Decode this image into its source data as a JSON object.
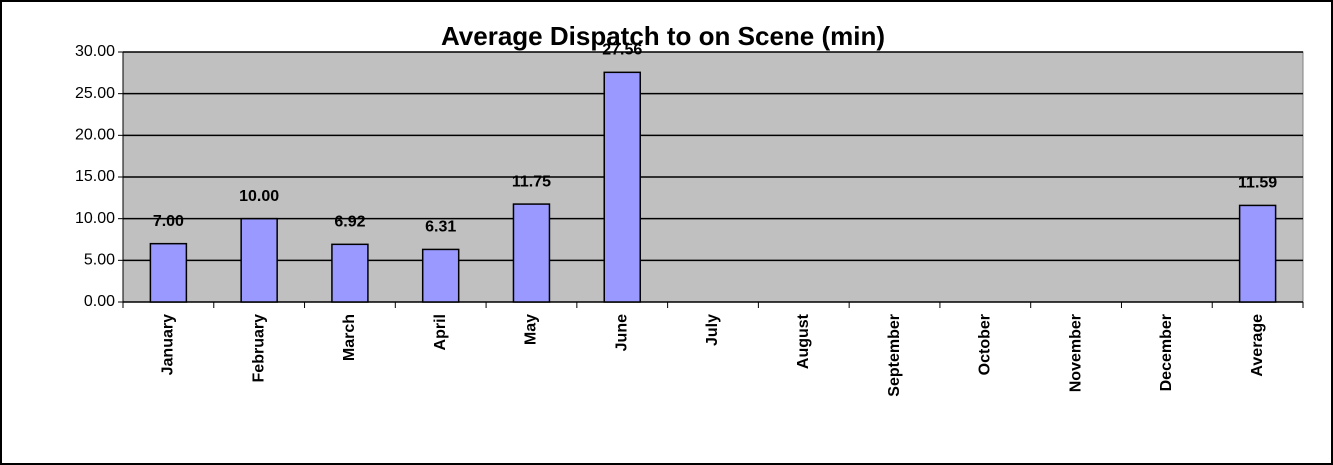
{
  "chart_data": {
    "type": "bar",
    "title": "Average Dispatch to on Scene (min)",
    "categories": [
      "January",
      "February",
      "March",
      "April",
      "May",
      "June",
      "July",
      "August",
      "September",
      "October",
      "November",
      "December",
      "Average"
    ],
    "values": [
      7.0,
      10.0,
      6.92,
      6.31,
      11.75,
      27.56,
      null,
      null,
      null,
      null,
      null,
      null,
      11.59
    ],
    "value_labels": [
      "7.00",
      "10.00",
      "6.92",
      "6.31",
      "11.75",
      "27.56",
      null,
      null,
      null,
      null,
      null,
      null,
      "11.59"
    ],
    "color": "#9999ff",
    "ylim": [
      0,
      30
    ],
    "yticks": [
      {
        "value": 0,
        "label": "0.00"
      },
      {
        "value": 5,
        "label": "5.00"
      },
      {
        "value": 10,
        "label": "10.00"
      },
      {
        "value": 15,
        "label": "15.00"
      },
      {
        "value": 20,
        "label": "20.00"
      },
      {
        "value": 25,
        "label": "25.00"
      },
      {
        "value": 30,
        "label": "30.00"
      }
    ],
    "grid": true
  }
}
